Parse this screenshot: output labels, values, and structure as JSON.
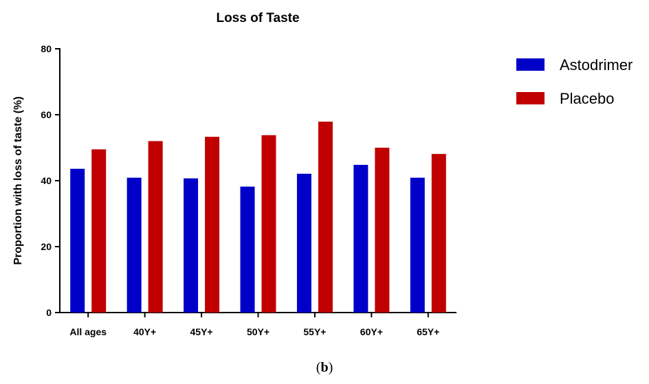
{
  "chart_data": {
    "type": "bar",
    "title": "Loss of Taste",
    "ylabel": "Proportion with loss of taste (%)",
    "xlabel": "",
    "ylim": [
      0,
      80
    ],
    "yticks": [
      0,
      20,
      40,
      60,
      80
    ],
    "grid": false,
    "legend_position": "right",
    "categories": [
      "All ages",
      "40Y+",
      "45Y+",
      "50Y+",
      "55Y+",
      "60Y+",
      "65Y+"
    ],
    "series": [
      {
        "name": "Astodrimer",
        "color": "#0000c8",
        "values": [
          43.6,
          40.9,
          40.7,
          38.2,
          42.1,
          44.8,
          40.9
        ]
      },
      {
        "name": "Placebo",
        "color": "#c00000",
        "values": [
          49.5,
          52.0,
          53.3,
          53.8,
          57.9,
          50.0,
          48.1
        ]
      }
    ]
  },
  "caption": {
    "open": "(",
    "letter": "b",
    "close": ")"
  }
}
